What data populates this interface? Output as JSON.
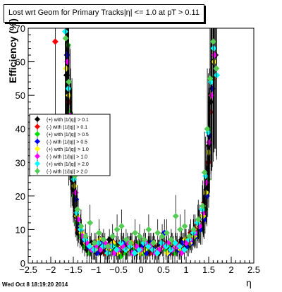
{
  "title": "Lost wrt Geom for Primary Tracks|η| <= 1.0 at pT > 0.11",
  "timestamp": "Wed Oct  8 18:19:20 2014",
  "chart_data": {
    "type": "scatter",
    "xlabel": "η",
    "ylabel": "Efficiency (%)",
    "xlim": [
      -2.5,
      2.5
    ],
    "ylim": [
      0,
      70
    ],
    "x_ticks": [
      "−2.5",
      "−2",
      "−1.5",
      "−1",
      "−0.5",
      "0",
      "0.5",
      "1",
      "1.5",
      "2",
      "2.5"
    ],
    "y_ticks": [
      "0",
      "10",
      "20",
      "30",
      "40",
      "50",
      "60",
      "70"
    ],
    "grid": false,
    "legend_position": "left",
    "series": [
      {
        "name": "(+) with |1/|q|| > 0.1",
        "color": "#000000",
        "x": [
          -1.65,
          -1.6,
          -1.55,
          -1.5,
          -1.45,
          -1.4,
          -1.3,
          -1.2,
          -1.1,
          -1.0,
          -0.9,
          -0.8,
          -0.7,
          -0.6,
          -0.5,
          -0.4,
          -0.3,
          -0.2,
          -0.1,
          0.0,
          0.1,
          0.2,
          0.3,
          0.4,
          0.5,
          0.6,
          0.7,
          0.8,
          0.9,
          1.0,
          1.1,
          1.2,
          1.3,
          1.4,
          1.45,
          1.5,
          1.55,
          1.6,
          1.65
        ],
        "y": [
          56,
          42,
          30,
          22,
          14,
          9,
          6,
          4,
          6,
          5,
          3,
          4,
          7,
          5,
          3,
          6,
          4,
          5,
          3,
          5,
          4,
          6,
          4,
          3,
          5,
          4,
          6,
          5,
          7,
          6,
          8,
          9,
          11,
          14,
          22,
          35,
          48,
          60,
          62
        ]
      },
      {
        "name": "(-) with |1/|q|| > 0.1",
        "color": "#ff0000",
        "x": [
          -1.9,
          -1.6,
          -1.55,
          -1.5,
          -1.45,
          -1.4,
          -1.3,
          -1.2,
          -1.1,
          -1.0,
          -0.9,
          -0.8,
          -0.7,
          -0.6,
          -0.5,
          -0.4,
          -0.3,
          -0.2,
          -0.1,
          0.0,
          0.1,
          0.2,
          0.3,
          0.4,
          0.5,
          0.6,
          0.7,
          0.8,
          0.9,
          1.0,
          1.1,
          1.2,
          1.3,
          1.4,
          1.5,
          1.55,
          1.6
        ],
        "y": [
          66,
          48,
          33,
          24,
          15,
          10,
          7,
          5,
          4,
          6,
          5,
          3,
          4,
          6,
          5,
          3,
          4,
          6,
          4,
          5,
          6,
          3,
          5,
          4,
          6,
          5,
          3,
          6,
          5,
          7,
          9,
          10,
          12,
          18,
          30,
          45,
          55
        ]
      },
      {
        "name": "(+) with |1/|q|| > 0.5",
        "color": "#00dd00",
        "x": [
          -1.62,
          -1.58,
          -1.52,
          -1.48,
          -1.42,
          -1.35,
          -1.25,
          -1.15,
          -1.05,
          -0.95,
          -0.85,
          -0.75,
          -0.65,
          -0.55,
          -0.45,
          -0.35,
          -0.25,
          -0.15,
          -0.05,
          0.05,
          0.15,
          0.25,
          0.35,
          0.45,
          0.55,
          0.65,
          0.75,
          0.85,
          0.95,
          1.05,
          1.15,
          1.25,
          1.35,
          1.42,
          1.48,
          1.52,
          1.58,
          1.62
        ],
        "y": [
          65,
          45,
          31,
          20,
          12,
          8,
          5,
          3,
          4,
          5,
          6,
          3,
          4,
          5,
          2,
          3,
          5,
          4,
          6,
          3,
          4,
          5,
          3,
          6,
          4,
          5,
          3,
          4,
          6,
          5,
          7,
          8,
          10,
          16,
          25,
          40,
          55,
          60
        ]
      },
      {
        "name": "(-) with |1/|q|| > 0.5",
        "color": "#0000ff",
        "x": [
          -1.64,
          -1.56,
          -1.5,
          -1.44,
          -1.38,
          -1.28,
          -1.18,
          -1.08,
          -0.98,
          -0.88,
          -0.78,
          -0.68,
          -0.58,
          -0.48,
          -0.38,
          -0.28,
          -0.18,
          -0.08,
          0.02,
          0.12,
          0.22,
          0.32,
          0.42,
          0.52,
          0.62,
          0.72,
          0.82,
          0.92,
          1.02,
          1.12,
          1.22,
          1.32,
          1.4,
          1.46,
          1.52,
          1.58
        ],
        "y": [
          62,
          40,
          28,
          19,
          11,
          7,
          5,
          4,
          3,
          6,
          4,
          5,
          3,
          4,
          6,
          5,
          3,
          4,
          5,
          3,
          6,
          4,
          5,
          9,
          3,
          5,
          4,
          6,
          5,
          6,
          8,
          10,
          13,
          20,
          38,
          52
        ]
      },
      {
        "name": "(+) with |1/|q|| > 1.0",
        "color": "#ffff00",
        "x": [
          -1.66,
          -1.6,
          -1.54,
          -1.48,
          -1.42,
          -1.32,
          -1.22,
          -1.12,
          -1.02,
          -0.92,
          -0.82,
          -0.72,
          -0.62,
          -0.52,
          -0.42,
          -0.32,
          -0.22,
          -0.12,
          -0.02,
          0.08,
          0.18,
          0.28,
          0.38,
          0.48,
          0.58,
          0.68,
          0.78,
          0.88,
          0.98,
          1.08,
          1.18,
          1.28,
          1.38,
          1.44,
          1.5,
          1.56,
          1.62
        ],
        "y": [
          58,
          50,
          36,
          23,
          14,
          9,
          6,
          5,
          4,
          7,
          5,
          4,
          6,
          3,
          5,
          4,
          6,
          5,
          3,
          4,
          5,
          6,
          4,
          5,
          3,
          6,
          5,
          4,
          7,
          6,
          8,
          11,
          14,
          21,
          33,
          50,
          60
        ]
      },
      {
        "name": "(-) with |1/|q|| > 1.0",
        "color": "#ff00ff",
        "x": [
          -1.63,
          -1.57,
          -1.51,
          -1.45,
          -1.39,
          -1.3,
          -1.2,
          -1.1,
          -1.0,
          -0.9,
          -0.8,
          -0.7,
          -0.6,
          -0.5,
          -0.4,
          -0.3,
          -0.2,
          -0.1,
          0.0,
          0.1,
          0.2,
          0.3,
          0.4,
          0.5,
          0.6,
          0.7,
          0.8,
          0.9,
          1.0,
          1.1,
          1.2,
          1.3,
          1.39,
          1.45,
          1.51,
          1.57,
          1.63
        ],
        "y": [
          60,
          44,
          30,
          21,
          13,
          8,
          6,
          4,
          5,
          4,
          6,
          5,
          3,
          4,
          5,
          6,
          3,
          5,
          4,
          6,
          5,
          3,
          4,
          5,
          6,
          4,
          5,
          3,
          6,
          7,
          9,
          11,
          15,
          24,
          36,
          50,
          62
        ]
      },
      {
        "name": "(+) with |1/|q|| > 2.0",
        "color": "#00ffff",
        "x": [
          -1.68,
          -1.61,
          -1.55,
          -1.49,
          -1.43,
          -1.34,
          -1.24,
          -1.14,
          -1.04,
          -0.94,
          -0.84,
          -0.74,
          -0.64,
          -0.54,
          -0.44,
          -0.34,
          -0.24,
          -0.14,
          -0.04,
          0.06,
          0.16,
          0.26,
          0.36,
          0.46,
          0.56,
          0.66,
          0.76,
          0.86,
          0.96,
          1.06,
          1.16,
          1.26,
          1.36,
          1.43,
          1.49,
          1.55,
          1.61,
          1.68
        ],
        "y": [
          69,
          52,
          37,
          25,
          15,
          10,
          7,
          5,
          4,
          6,
          5,
          3,
          5,
          4,
          6,
          4,
          5,
          3,
          4,
          6,
          5,
          4,
          3,
          6,
          5,
          4,
          6,
          5,
          4,
          7,
          9,
          12,
          16,
          26,
          39,
          54,
          64,
          56
        ]
      },
      {
        "name": "(-) with |1/|q|| > 2.0",
        "color": "#55cc55",
        "x": [
          -1.67,
          -1.6,
          -1.53,
          -1.47,
          -1.41,
          -1.33,
          -1.23,
          -1.13,
          -1.03,
          -0.93,
          -0.83,
          -0.73,
          -0.63,
          -0.53,
          -0.43,
          -0.33,
          -0.23,
          -0.13,
          -0.03,
          0.07,
          0.17,
          0.27,
          0.37,
          0.47,
          0.57,
          0.67,
          0.77,
          0.87,
          0.97,
          1.07,
          1.17,
          1.27,
          1.37,
          1.41,
          1.47,
          1.53,
          1.6,
          1.67
        ],
        "y": [
          67,
          54,
          38,
          26,
          16,
          11,
          8,
          12,
          6,
          9,
          7,
          5,
          8,
          10,
          11,
          7,
          6,
          9,
          8,
          7,
          10,
          6,
          9,
          8,
          9,
          7,
          14,
          10,
          11,
          8,
          10,
          13,
          17,
          27,
          40,
          55,
          66,
          58
        ]
      }
    ]
  }
}
